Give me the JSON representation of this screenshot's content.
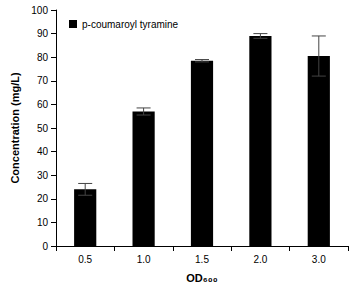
{
  "chart_data": {
    "type": "bar",
    "categories": [
      "0.5",
      "1.0",
      "1.5",
      "2.0",
      "3.0"
    ],
    "series": [
      {
        "name": "p-coumaroyl tyramine",
        "color": "#000000",
        "values": [
          24,
          57,
          78.5,
          89,
          80.5
        ],
        "errors": [
          2.5,
          1.5,
          0.5,
          1,
          8.5
        ]
      }
    ],
    "x_label": "OD₆₀₀",
    "y_label": "Concentration (mg/L)",
    "ylim": [
      0,
      100
    ],
    "yticks": [
      0,
      10,
      20,
      30,
      40,
      50,
      60,
      70,
      80,
      90,
      100
    ],
    "grid": false,
    "legend": "upper left"
  }
}
